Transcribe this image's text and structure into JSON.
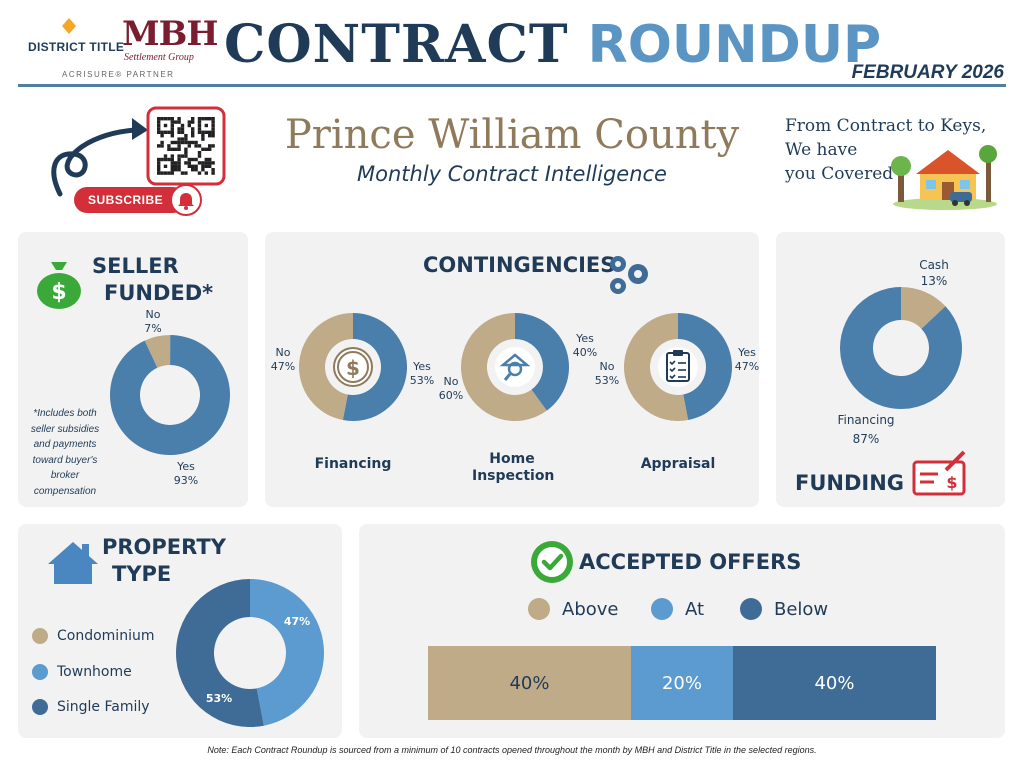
{
  "header": {
    "district_title": "DISTRICT TITLE",
    "mbh": "MBH",
    "mbh_sub": "Settlement Group",
    "acrisure": "ACRISURE® PARTNER",
    "title_part1": "CONTRACT",
    "title_part2": "ROUNDUP",
    "month": "FEBRUARY 2026"
  },
  "hero": {
    "county": "Prince William County",
    "subtitle": "Monthly Contract Intelligence",
    "subscribe": "SUBSCRIBE",
    "tagline": [
      "From Contract to Keys,",
      "We have",
      "you Covered"
    ]
  },
  "colors": {
    "tan": "#bfab88",
    "light_blue": "#5b9bd0",
    "steel_blue": "#4a7eab",
    "dark_blue": "#3f6c96",
    "navy": "#1f3b57",
    "panel": "#f2f2f2",
    "red": "#d32f3a",
    "green": "#3aa93a"
  },
  "sections": {
    "seller_funded_line1": "SELLER",
    "seller_funded_line2": "FUNDED*",
    "seller_note": "*Includes both seller subsidies and payments toward buyer's broker compensation",
    "contingencies": "CONTINGENCIES",
    "funding": "FUNDING",
    "property_type_line1": "PROPERTY",
    "property_type_line2": "TYPE",
    "accepted_offers": "ACCEPTED OFFERS"
  },
  "chart_data": [
    {
      "id": "seller_funded",
      "type": "pie",
      "slices": [
        {
          "label": "No",
          "value": 7,
          "display": "7%",
          "color": "#bfab88"
        },
        {
          "label": "Yes",
          "value": 93,
          "display": "93%",
          "color": "#4a7eab"
        }
      ]
    },
    {
      "id": "financing",
      "type": "pie",
      "title": "Financing",
      "slices": [
        {
          "label": "Yes",
          "value": 53,
          "display": "53%",
          "color": "#4a7eab"
        },
        {
          "label": "No",
          "value": 47,
          "display": "47%",
          "color": "#bfab88"
        }
      ]
    },
    {
      "id": "home_inspection",
      "type": "pie",
      "title": "Home Inspection",
      "slices": [
        {
          "label": "Yes",
          "value": 40,
          "display": "40%",
          "color": "#4a7eab"
        },
        {
          "label": "No",
          "value": 60,
          "display": "60%",
          "color": "#bfab88"
        }
      ]
    },
    {
      "id": "appraisal",
      "type": "pie",
      "title": "Appraisal",
      "slices": [
        {
          "label": "Yes",
          "value": 47,
          "display": "47%",
          "color": "#4a7eab"
        },
        {
          "label": "No",
          "value": 53,
          "display": "53%",
          "color": "#bfab88"
        }
      ]
    },
    {
      "id": "funding",
      "type": "pie",
      "slices": [
        {
          "label": "Cash",
          "value": 13,
          "display": "13%",
          "color": "#bfab88"
        },
        {
          "label": "Financing",
          "value": 87,
          "display": "87%",
          "color": "#4a7eab"
        }
      ]
    },
    {
      "id": "property_type",
      "type": "pie",
      "legend": [
        "Condominium",
        "Townhome",
        "Single Family"
      ],
      "slices": [
        {
          "label": "Condominium",
          "value": 0,
          "display": "",
          "color": "#bfab88"
        },
        {
          "label": "Townhome",
          "value": 47,
          "display": "47%",
          "color": "#5b9bd0"
        },
        {
          "label": "Single Family",
          "value": 53,
          "display": "53%",
          "color": "#3f6c96"
        }
      ]
    },
    {
      "id": "accepted_offers",
      "type": "bar",
      "categories": [
        "Above",
        "At",
        "Below"
      ],
      "values": [
        40,
        20,
        40
      ],
      "display": [
        "40%",
        "20%",
        "40%"
      ],
      "colors": [
        "#bfab88",
        "#5b9bd0",
        "#3f6c96"
      ]
    }
  ],
  "footnote": "Note: Each Contract Roundup is sourced from a minimum of 10 contracts opened throughout the month by MBH and District Title in the selected regions."
}
